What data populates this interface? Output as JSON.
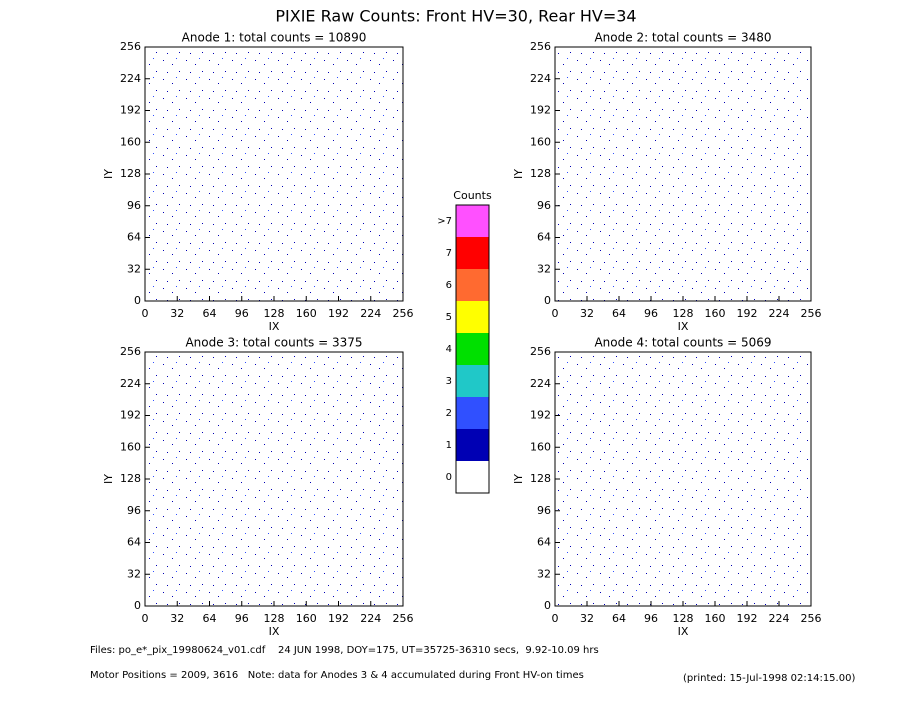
{
  "title": "PIXIE Raw Counts:  Front HV=30, Rear HV=34",
  "chart_data": [
    {
      "type": "heatmap",
      "title": "Anode 1: total counts = 10890",
      "x_label": "IX",
      "y_label": "IY",
      "xlim": [
        0,
        256
      ],
      "ylim": [
        0,
        256
      ],
      "xticks": [
        0,
        32,
        64,
        96,
        128,
        160,
        192,
        224,
        256
      ],
      "yticks": [
        0,
        32,
        64,
        96,
        128,
        160,
        192,
        224,
        256
      ]
    },
    {
      "type": "heatmap",
      "title": "Anode 2: total counts = 3480",
      "x_label": "IX",
      "y_label": "IY",
      "xlim": [
        0,
        256
      ],
      "ylim": [
        0,
        256
      ],
      "xticks": [
        0,
        32,
        64,
        96,
        128,
        160,
        192,
        224,
        256
      ],
      "yticks": [
        0,
        32,
        64,
        96,
        128,
        160,
        192,
        224,
        256
      ]
    },
    {
      "type": "heatmap",
      "title": "Anode 3: total counts = 3375",
      "x_label": "IX",
      "y_label": "IY",
      "xlim": [
        0,
        256
      ],
      "ylim": [
        0,
        256
      ],
      "xticks": [
        0,
        32,
        64,
        96,
        128,
        160,
        192,
        224,
        256
      ],
      "yticks": [
        0,
        32,
        64,
        96,
        128,
        160,
        192,
        224,
        256
      ]
    },
    {
      "type": "heatmap",
      "title": "Anode 4: total counts = 5069",
      "x_label": "IX",
      "y_label": "IY",
      "xlim": [
        0,
        256
      ],
      "ylim": [
        0,
        256
      ],
      "xticks": [
        0,
        32,
        64,
        96,
        128,
        160,
        192,
        224,
        256
      ],
      "yticks": [
        0,
        32,
        64,
        96,
        128,
        160,
        192,
        224,
        256
      ]
    }
  ],
  "colorbar": {
    "title": "Counts",
    "categories": [
      "0",
      "1",
      "2",
      "3",
      "4",
      "5",
      "6",
      "7",
      ">7"
    ],
    "colors": [
      "#ffffff",
      "#0000b4",
      "#3050ff",
      "#20c8c8",
      "#00e000",
      "#ffff00",
      "#ff6a30",
      "#ff0000",
      "#ff50ff"
    ]
  },
  "footer": {
    "files": "Files: po_e*_pix_19980624_v01.cdf    24 JUN 1998, DOY=175, UT=35725-36310 secs,  9.92-10.09 hrs",
    "motor": "Motor Positions = 2009, 3616   Note: data for Anodes 3 & 4 accumulated during Front HV-on times",
    "printed": "(printed: 15-Jul-1998 02:14:15.00)"
  }
}
